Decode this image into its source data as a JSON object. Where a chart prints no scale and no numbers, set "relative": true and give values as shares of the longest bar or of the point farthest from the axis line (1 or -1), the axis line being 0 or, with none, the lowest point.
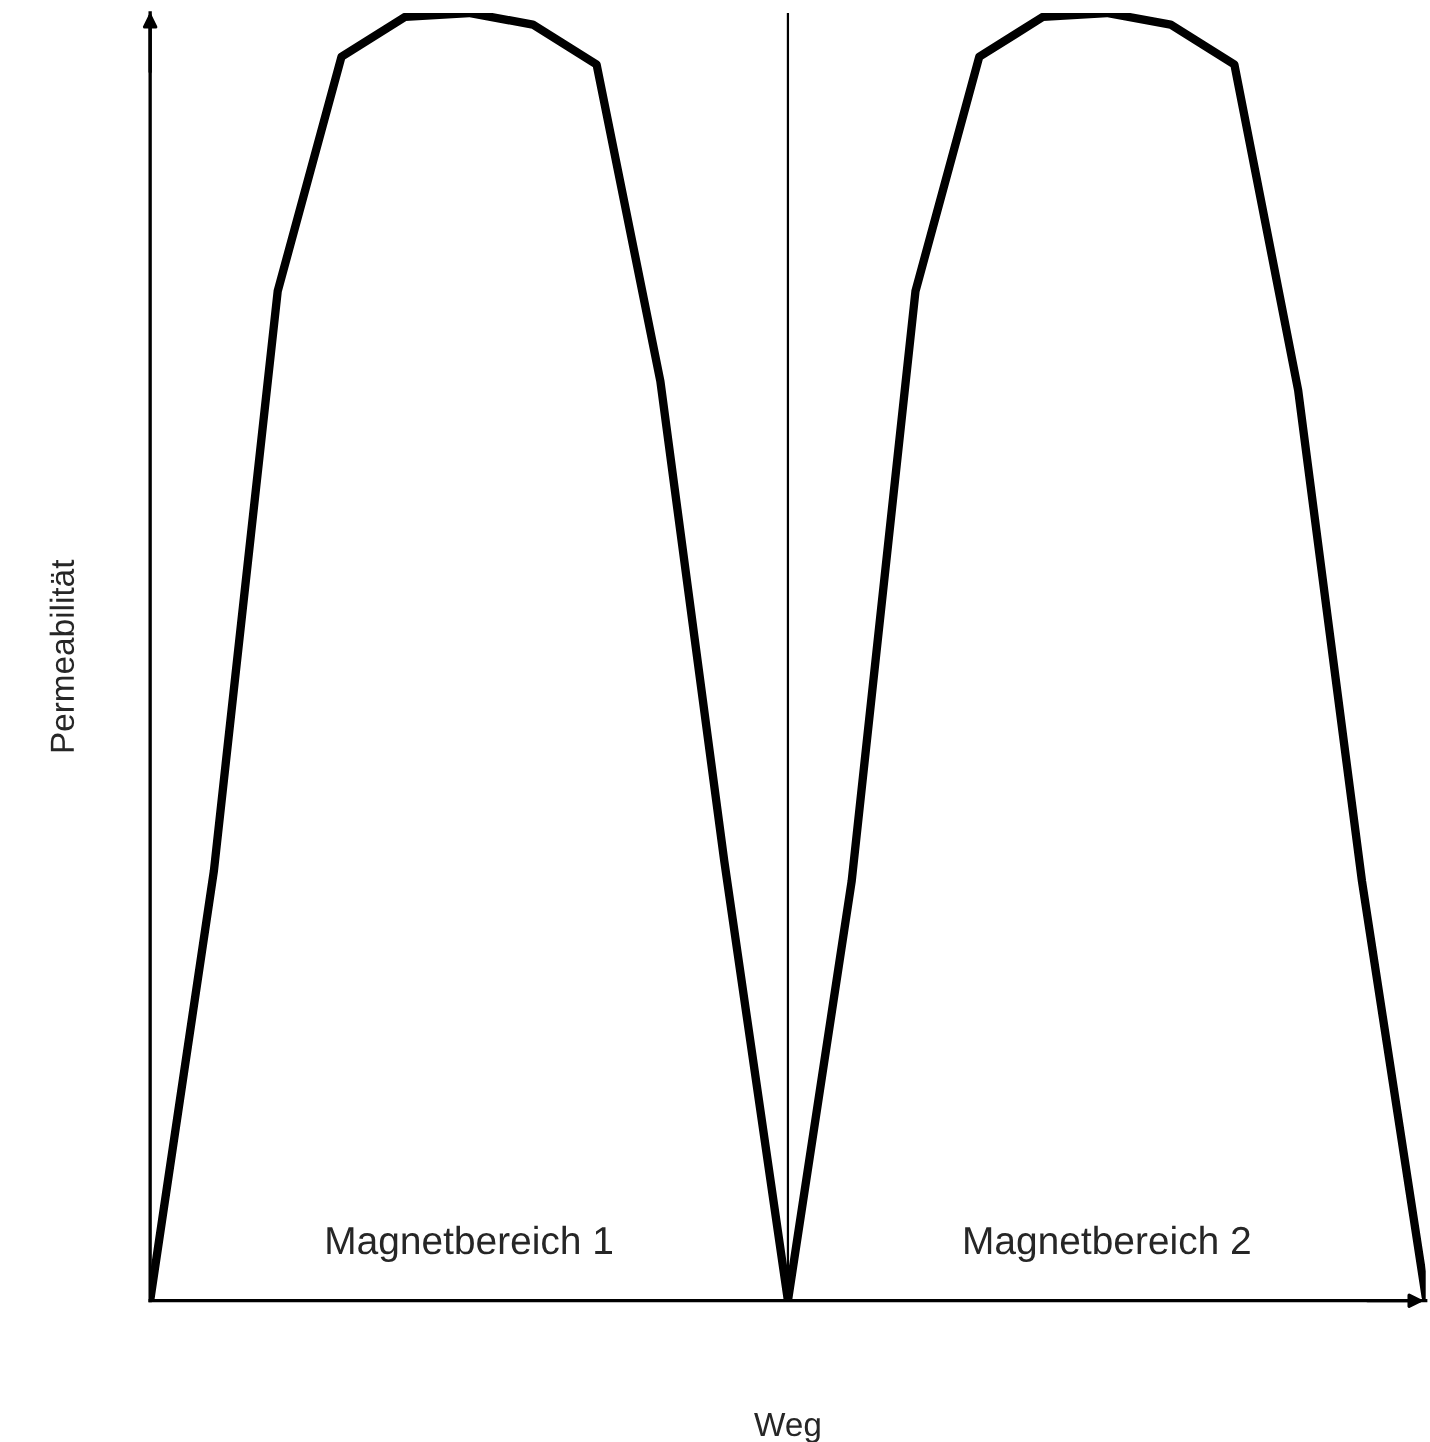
{
  "chart_data": {
    "type": "line",
    "relative": true,
    "xlabel": "Weg",
    "ylabel": "Permeabilität",
    "categories": [
      null,
      null,
      null,
      null,
      null,
      null,
      null,
      null,
      null,
      null,
      null,
      null,
      null,
      null,
      null,
      null,
      null,
      null,
      null,
      null,
      null
    ],
    "series": [
      {
        "color": "#000000",
        "values": [
          0,
          0.334,
          0.784,
          0.966,
          0.997,
          1,
          0.991,
          0.96,
          0.714,
          0.342,
          0,
          0.326,
          0.784,
          0.966,
          0.997,
          1,
          0.991,
          0.96,
          0.707,
          0.326,
          0.003
        ]
      }
    ],
    "annotations": [
      "Magnetbereich 1",
      "Magnetbereich 2"
    ],
    "marker": "none",
    "line_style": "solid",
    "grid": false,
    "legend": false,
    "tick_labels": false
  }
}
